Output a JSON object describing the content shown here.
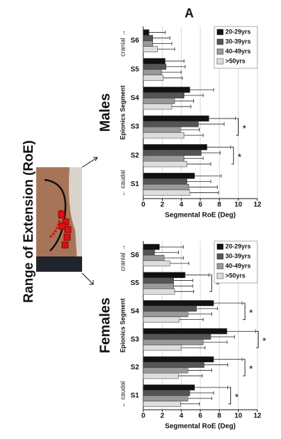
{
  "figure_label": "A",
  "side_label": "Range of Extension (RoE)",
  "chart_data": [
    {
      "type": "bar",
      "orientation": "horizontal",
      "title": "Males",
      "y_label": "Epionics Segment",
      "x_label": "Segmental RoE (Deg)",
      "top_note": "cranial →",
      "bottom_note": "← caudal",
      "categories": [
        "S6",
        "S5",
        "S4",
        "S3",
        "S2",
        "S1"
      ],
      "series": [
        {
          "name": "20-29yrs",
          "color": "#111111",
          "values": [
            0.6,
            2.3,
            4.9,
            6.9,
            6.7,
            5.4
          ],
          "errors": [
            1.7,
            2.0,
            2.5,
            2.8,
            2.5,
            2.8
          ]
        },
        {
          "name": "30-39yrs",
          "color": "#555555",
          "values": [
            1.0,
            2.4,
            4.3,
            5.8,
            6.1,
            4.6
          ],
          "errors": [
            1.8,
            2.0,
            2.0,
            2.7,
            2.0,
            2.5
          ]
        },
        {
          "name": "40-49yrs",
          "color": "#999999",
          "values": [
            1.0,
            1.9,
            3.3,
            3.9,
            4.3,
            4.8
          ],
          "errors": [
            2.0,
            2.1,
            2.0,
            2.0,
            2.0,
            3.0
          ]
        },
        {
          "name": ">50yrs",
          "color": "#dddddd",
          "values": [
            1.5,
            2.1,
            3.0,
            4.3,
            4.6,
            4.9
          ],
          "errors": [
            1.8,
            2.0,
            2.0,
            2.0,
            2.5,
            3.0
          ]
        }
      ],
      "significant": [
        false,
        false,
        false,
        true,
        true,
        false
      ],
      "significance_label": "*",
      "xlim": [
        0,
        12
      ],
      "xticks": [
        0,
        2,
        4,
        6,
        8,
        10,
        12
      ],
      "grid": true,
      "legend": "top-right"
    },
    {
      "type": "bar",
      "orientation": "horizontal",
      "title": "Females",
      "y_label": "Epionics Segment",
      "x_label": "Segmental RoE (Deg)",
      "top_note": "cranial →",
      "bottom_note": "← caudal",
      "categories": [
        "S6",
        "S5",
        "S4",
        "S3",
        "S2",
        "S1"
      ],
      "series": [
        {
          "name": "20-29yrs",
          "color": "#111111",
          "values": [
            1.7,
            4.4,
            7.4,
            8.8,
            7.4,
            5.4
          ],
          "errors": [
            2.5,
            2.5,
            3.0,
            3.0,
            3.0,
            3.5
          ]
        },
        {
          "name": "30-39yrs",
          "color": "#555555",
          "values": [
            1.2,
            3.2,
            5.6,
            7.1,
            6.4,
            4.9
          ],
          "errors": [
            2.5,
            2.0,
            2.2,
            2.5,
            2.5,
            2.5
          ]
        },
        {
          "name": "40-49yrs",
          "color": "#999999",
          "values": [
            2.2,
            3.2,
            4.7,
            6.3,
            4.7,
            4.7
          ],
          "errors": [
            2.0,
            2.0,
            2.5,
            2.5,
            2.5,
            2.5
          ]
        },
        {
          "name": ">50yrs",
          "color": "#dddddd",
          "values": [
            2.8,
            3.3,
            3.8,
            4.0,
            3.7,
            3.9
          ],
          "errors": [
            2.0,
            2.0,
            2.5,
            2.5,
            2.5,
            2.0
          ]
        }
      ],
      "significant": [
        false,
        true,
        true,
        true,
        true,
        true
      ],
      "significance_label": "*",
      "xlim": [
        0,
        12
      ],
      "xticks": [
        0,
        2,
        4,
        6,
        8,
        10,
        12
      ],
      "grid": true,
      "legend": "top-right"
    }
  ]
}
